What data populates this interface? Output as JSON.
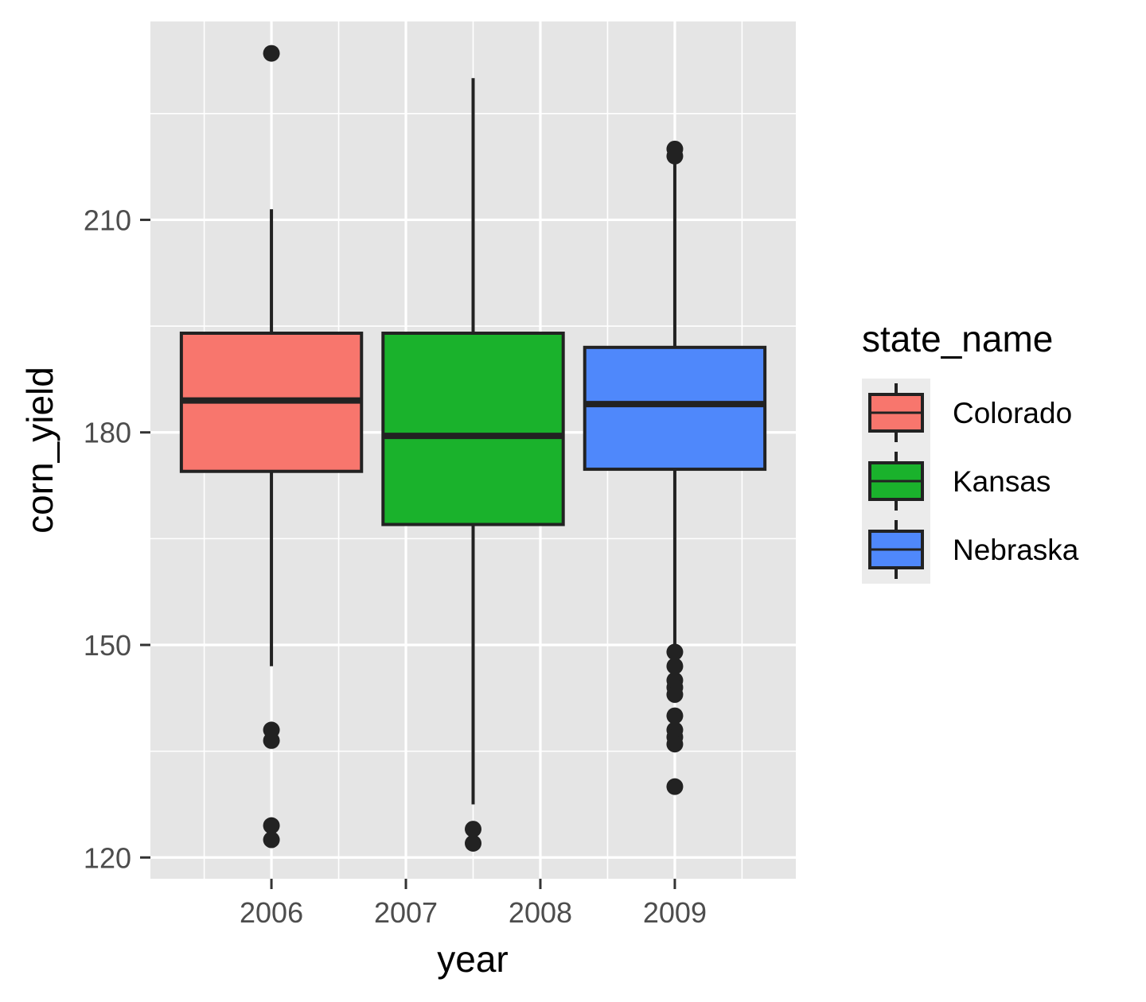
{
  "chart_data": {
    "type": "boxplot",
    "xlabel": "year",
    "ylabel": "corn_yield",
    "x_ticks": [
      "2006",
      "2007",
      "2008",
      "2009"
    ],
    "x_range": [
      2005.1,
      2009.9
    ],
    "ylim": [
      117,
      238
    ],
    "y_ticks": [
      120,
      150,
      180,
      210
    ],
    "y_minor_ticks": [
      135,
      165,
      195,
      225
    ],
    "x_minor_ticks": [
      2005.5,
      2006.5,
      2007.5,
      2008.5,
      2009.5
    ],
    "grid": true,
    "legend": {
      "title": "state_name",
      "position": "right",
      "entries": [
        "Colorado",
        "Kansas",
        "Nebraska"
      ]
    },
    "series": [
      {
        "name": "Colorado",
        "color": "#F8766D",
        "x": 2006,
        "x_start": 2005.33,
        "x_end": 2006.67,
        "lower_whisker": 147,
        "q1": 174.5,
        "median": 184.5,
        "q3": 194,
        "upper_whisker": 211.5,
        "outliers": [
          233.5,
          138,
          136.5,
          124.5,
          122.5
        ]
      },
      {
        "name": "Kansas",
        "color": "#1AB22C",
        "x": 2007.5,
        "x_start": 2006.83,
        "x_end": 2008.17,
        "lower_whisker": 127.5,
        "q1": 167,
        "median": 179.5,
        "q3": 194,
        "upper_whisker": 230,
        "outliers": [
          124,
          122
        ]
      },
      {
        "name": "Nebraska",
        "color": "#4F88FB",
        "x": 2009,
        "x_start": 2008.33,
        "x_end": 2009.67,
        "lower_whisker": 149,
        "q1": 174.8,
        "median": 184,
        "q3": 192,
        "upper_whisker": 219,
        "outliers": [
          220,
          219,
          149,
          147,
          145,
          144,
          143,
          140,
          138,
          137,
          136,
          130
        ]
      }
    ],
    "colors": {
      "panel_background": "#E5E5E5",
      "grid": "#FFFFFF",
      "box_outline": "#222222",
      "legend_key_background": "#EBEBEB"
    }
  }
}
